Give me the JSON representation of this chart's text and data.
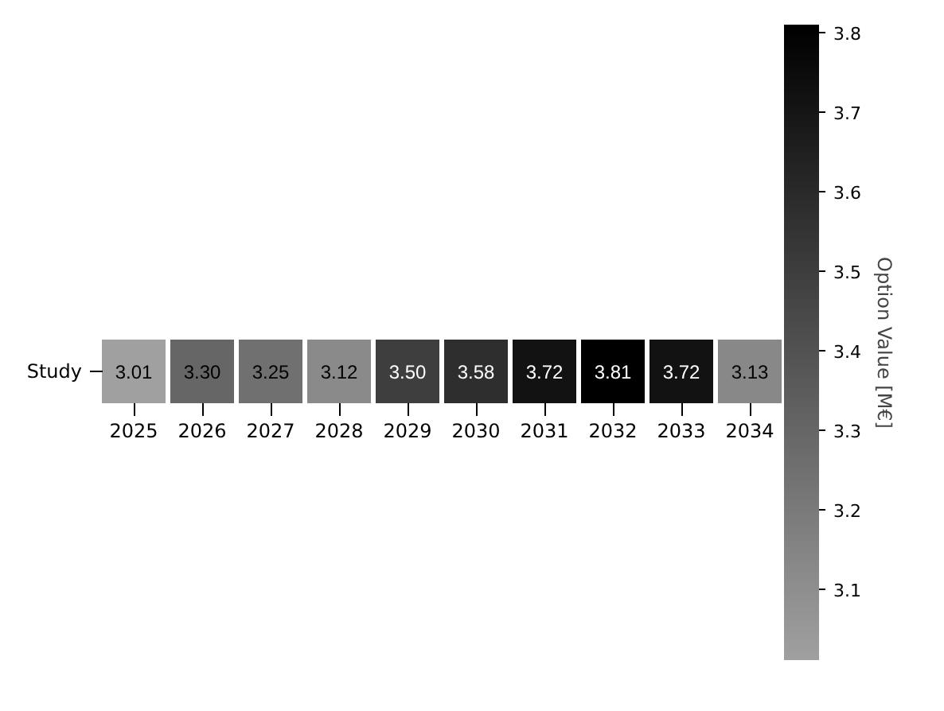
{
  "chart_data": {
    "type": "heatmap",
    "categories": [
      "2025",
      "2026",
      "2027",
      "2028",
      "2029",
      "2030",
      "2031",
      "2032",
      "2033",
      "2034"
    ],
    "y_categories": [
      "Study"
    ],
    "cells": [
      [
        3.01,
        3.3,
        3.25,
        3.12,
        3.5,
        3.58,
        3.72,
        3.81,
        3.72,
        3.13
      ]
    ],
    "cell_labels": [
      [
        "3.01",
        "3.30",
        "3.25",
        "3.12",
        "3.50",
        "3.58",
        "3.72",
        "3.81",
        "3.72",
        "3.13"
      ]
    ],
    "clabel": "Option Value [M€]",
    "clim": [
      3.01,
      3.81
    ],
    "cticks": [
      3.1,
      3.2,
      3.3,
      3.4,
      3.5,
      3.6,
      3.7,
      3.8
    ]
  }
}
